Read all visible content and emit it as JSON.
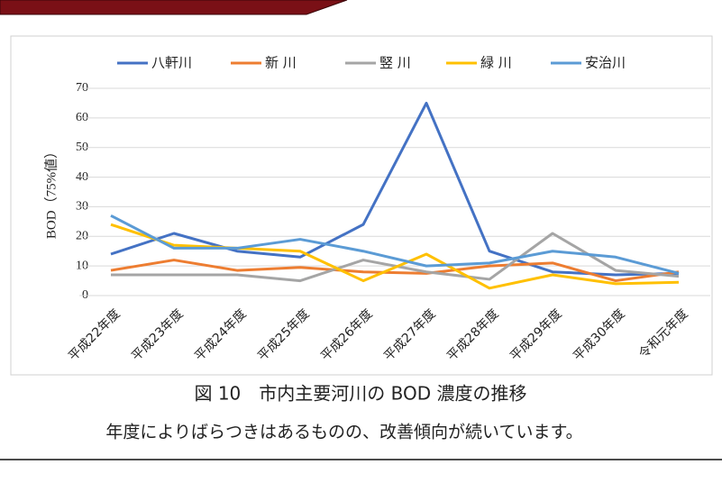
{
  "chart_data": {
    "type": "line",
    "title": "図 10　市内主要河川の BOD 濃度の推移",
    "categories": [
      "平成22年度",
      "平成23年度",
      "平成24年度",
      "平成25年度",
      "平成26年度",
      "平成27年度",
      "平成28年度",
      "平成29年度",
      "平成30年度",
      "令和元年度"
    ],
    "series": [
      {
        "name": "八軒川",
        "color": "#4472c4",
        "values": [
          14,
          21,
          15,
          13,
          24,
          65,
          15,
          8,
          7,
          7.5
        ]
      },
      {
        "name": "新 川",
        "color": "#ed7d31",
        "values": [
          8.5,
          12,
          8.5,
          9.5,
          8,
          7.5,
          10,
          11,
          5,
          8
        ]
      },
      {
        "name": "竪 川",
        "color": "#a5a5a5",
        "values": [
          7,
          7,
          7,
          5,
          12,
          8,
          5.5,
          21,
          8.5,
          6.5
        ]
      },
      {
        "name": "緑 川",
        "color": "#ffc000",
        "values": [
          24,
          17,
          16,
          15,
          5,
          14,
          2.5,
          7,
          4,
          4.5
        ]
      },
      {
        "name": "安治川",
        "color": "#5b9bd5",
        "values": [
          27,
          16,
          16,
          19,
          15,
          10,
          11,
          15,
          13,
          7.5
        ]
      }
    ],
    "ylabel": "BOD（75%値）",
    "ylim": [
      0,
      70
    ],
    "yticks": [
      0,
      10,
      20,
      30,
      40,
      50,
      60,
      70
    ],
    "grid": true,
    "legend": "top"
  },
  "note": "年度によりばらつきはあるものの、改善傾向が続いています。"
}
